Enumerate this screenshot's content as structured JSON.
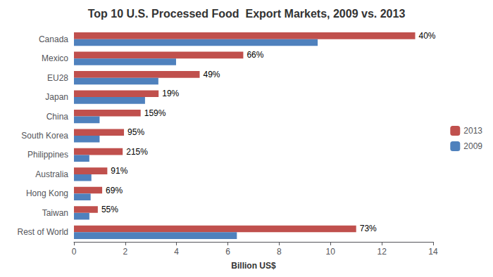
{
  "chart_data": {
    "type": "bar",
    "orientation": "horizontal",
    "title": "Top 10 U.S. Processed Food  Export Markets, 2009 vs. 2013",
    "xlabel": "Billion US$",
    "categories": [
      "Canada",
      "Mexico",
      "EU28",
      "Japan",
      "China",
      "South Korea",
      "Philippines",
      "Australia",
      "Hong Kong",
      "Taiwan",
      "Rest of World"
    ],
    "series": [
      {
        "name": "2013",
        "color": "#C0504D",
        "values": [
          13.3,
          6.6,
          4.9,
          3.3,
          2.6,
          1.95,
          1.9,
          1.3,
          1.1,
          0.93,
          11.0
        ]
      },
      {
        "name": "2009",
        "color": "#4F81BD",
        "values": [
          9.5,
          3.98,
          3.29,
          2.77,
          1.0,
          1.0,
          0.6,
          0.68,
          0.65,
          0.6,
          6.35
        ]
      }
    ],
    "annotations": [
      {
        "category": "Canada",
        "series": "2013",
        "text": "40%"
      },
      {
        "category": "Mexico",
        "series": "2013",
        "text": "66%"
      },
      {
        "category": "EU28",
        "series": "2013",
        "text": "49%"
      },
      {
        "category": "Japan",
        "series": "2013",
        "text": "19%"
      },
      {
        "category": "China",
        "series": "2013",
        "text": "159%"
      },
      {
        "category": "South Korea",
        "series": "2013",
        "text": "95%"
      },
      {
        "category": "Philippines",
        "series": "2013",
        "text": "215%"
      },
      {
        "category": "Australia",
        "series": "2013",
        "text": "91%"
      },
      {
        "category": "Hong Kong",
        "series": "2013",
        "text": "69%"
      },
      {
        "category": "Taiwan",
        "series": "2013",
        "text": "55%"
      },
      {
        "category": "Rest of World",
        "series": "2013",
        "text": "73%"
      }
    ],
    "xlim": [
      0,
      14
    ],
    "xticks": [
      0,
      2,
      4,
      6,
      8,
      10,
      12,
      14
    ],
    "grid": false,
    "legend": "right"
  }
}
